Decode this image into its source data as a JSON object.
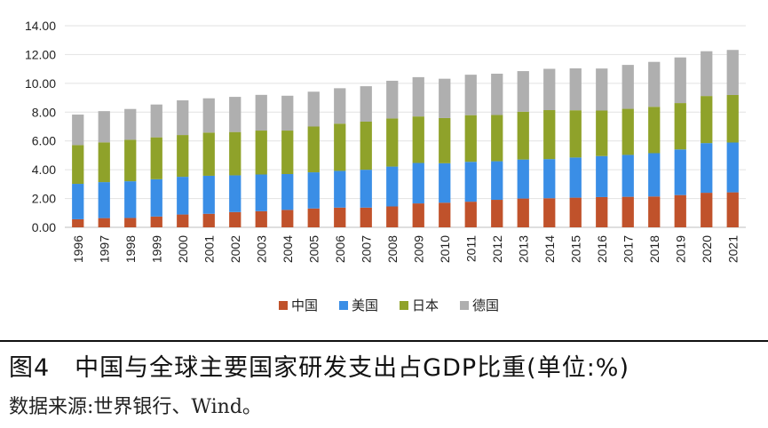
{
  "caption": "图4　中国与全球主要国家研发支出占GDP比重(单位:%)",
  "source": "数据来源:世界银行、Wind。",
  "chart_data": {
    "type": "bar",
    "stacked": true,
    "title": "",
    "xlabel": "",
    "ylabel": "",
    "ylim": [
      0,
      14
    ],
    "yticks": [
      "0.00",
      "2.00",
      "4.00",
      "6.00",
      "8.00",
      "10.00",
      "12.00",
      "14.00"
    ],
    "grid": true,
    "legend_position": "bottom",
    "categories": [
      "1996",
      "1997",
      "1998",
      "1999",
      "2000",
      "2001",
      "2002",
      "2003",
      "2004",
      "2005",
      "2006",
      "2007",
      "2008",
      "2009",
      "2010",
      "2011",
      "2012",
      "2013",
      "2014",
      "2015",
      "2016",
      "2017",
      "2018",
      "2019",
      "2020",
      "2021"
    ],
    "series": [
      {
        "name": "中国",
        "color": "#C0522B",
        "values": [
          0.56,
          0.64,
          0.65,
          0.75,
          0.89,
          0.94,
          1.06,
          1.12,
          1.21,
          1.31,
          1.37,
          1.37,
          1.45,
          1.66,
          1.71,
          1.78,
          1.91,
          2.0,
          2.02,
          2.06,
          2.1,
          2.12,
          2.14,
          2.24,
          2.4,
          2.43
        ]
      },
      {
        "name": "美国",
        "color": "#3A8EE6",
        "values": [
          2.46,
          2.5,
          2.55,
          2.59,
          2.62,
          2.64,
          2.55,
          2.55,
          2.49,
          2.51,
          2.55,
          2.63,
          2.77,
          2.81,
          2.74,
          2.77,
          2.68,
          2.71,
          2.72,
          2.79,
          2.85,
          2.91,
          3.01,
          3.17,
          3.45,
          3.46
        ]
      },
      {
        "name": "日本",
        "color": "#8FA22A",
        "values": [
          2.69,
          2.76,
          2.88,
          2.91,
          2.9,
          3.0,
          3.01,
          3.05,
          3.02,
          3.18,
          3.28,
          3.34,
          3.34,
          3.23,
          3.14,
          3.24,
          3.21,
          3.32,
          3.4,
          3.28,
          3.16,
          3.2,
          3.22,
          3.22,
          3.27,
          3.3
        ]
      },
      {
        "name": "德国",
        "color": "#AFAFAF",
        "values": [
          2.12,
          2.17,
          2.14,
          2.28,
          2.41,
          2.38,
          2.44,
          2.48,
          2.42,
          2.42,
          2.46,
          2.46,
          2.62,
          2.73,
          2.73,
          2.81,
          2.87,
          2.82,
          2.87,
          2.91,
          2.92,
          3.05,
          3.12,
          3.17,
          3.11,
          3.13
        ]
      }
    ]
  }
}
